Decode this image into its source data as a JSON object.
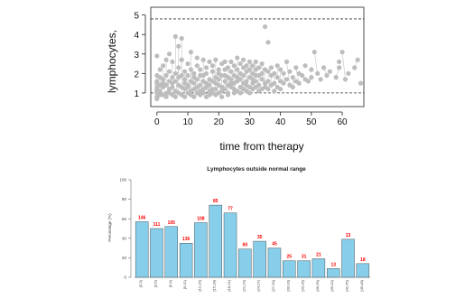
{
  "chart_data": [
    {
      "type": "scatter",
      "title": "",
      "xlabel": "time from therapy",
      "ylabel": "lymphocytes,",
      "xlim": [
        -2,
        67
      ],
      "ylim": [
        0.3,
        5.4
      ],
      "xticks": [
        0,
        10,
        20,
        30,
        40,
        50,
        60
      ],
      "yticks": [
        1,
        2,
        3,
        4,
        5
      ],
      "reference_lines": [
        4.8,
        1.0
      ],
      "points": [
        [
          0,
          1.0
        ],
        [
          0,
          1.2
        ],
        [
          0,
          1.5
        ],
        [
          0,
          0.8
        ],
        [
          0,
          1.9
        ],
        [
          0,
          2.9
        ],
        [
          0,
          1.3
        ],
        [
          0,
          0.7
        ],
        [
          0,
          1.6
        ],
        [
          0,
          1.1
        ],
        [
          1,
          1.4
        ],
        [
          1,
          2.2
        ],
        [
          1,
          0.9
        ],
        [
          1,
          1.8
        ],
        [
          1,
          1.1
        ],
        [
          2,
          1.3
        ],
        [
          2,
          1.7
        ],
        [
          2,
          0.9
        ],
        [
          2,
          2.4
        ],
        [
          2,
          1.5
        ],
        [
          3,
          1.0
        ],
        [
          3,
          2.7
        ],
        [
          3,
          1.4
        ],
        [
          3,
          1.9
        ],
        [
          3,
          0.8
        ],
        [
          4,
          1.6
        ],
        [
          4,
          2.1
        ],
        [
          4,
          1.2
        ],
        [
          4,
          1.0
        ],
        [
          4,
          3.0
        ],
        [
          5,
          1.5
        ],
        [
          5,
          2.6
        ],
        [
          5,
          1.8
        ],
        [
          5,
          0.9
        ],
        [
          5,
          1.3
        ],
        [
          6,
          1.1
        ],
        [
          6,
          3.9
        ],
        [
          6,
          2.0
        ],
        [
          6,
          1.6
        ],
        [
          6,
          0.8
        ],
        [
          7,
          2.3
        ],
        [
          7,
          1.4
        ],
        [
          7,
          1.0
        ],
        [
          7,
          3.4
        ],
        [
          7,
          1.8
        ],
        [
          8,
          1.3
        ],
        [
          8,
          2.7
        ],
        [
          8,
          1.9
        ],
        [
          8,
          0.9
        ],
        [
          8,
          3.8
        ],
        [
          9,
          1.5
        ],
        [
          9,
          2.1
        ],
        [
          9,
          1.2
        ],
        [
          9,
          0.8
        ],
        [
          9,
          1.7
        ],
        [
          10,
          1.4
        ],
        [
          10,
          2.5
        ],
        [
          10,
          1.0
        ],
        [
          10,
          1.9
        ],
        [
          10,
          1.3
        ],
        [
          11,
          1.1
        ],
        [
          11,
          2.2
        ],
        [
          11,
          1.6
        ],
        [
          11,
          0.9
        ],
        [
          11,
          3.1
        ],
        [
          12,
          1.5
        ],
        [
          12,
          2.0
        ],
        [
          12,
          1.2
        ],
        [
          12,
          1.8
        ],
        [
          12,
          0.8
        ],
        [
          13,
          1.3
        ],
        [
          13,
          2.4
        ],
        [
          13,
          1.7
        ],
        [
          13,
          1.0
        ],
        [
          13,
          2.8
        ],
        [
          14,
          1.4
        ],
        [
          14,
          1.9
        ],
        [
          14,
          1.1
        ],
        [
          14,
          2.2
        ],
        [
          14,
          0.9
        ],
        [
          15,
          1.6
        ],
        [
          15,
          2.7
        ],
        [
          15,
          1.2
        ],
        [
          15,
          1.9
        ],
        [
          15,
          1.0
        ],
        [
          16,
          1.5
        ],
        [
          16,
          2.3
        ],
        [
          16,
          1.3
        ],
        [
          16,
          0.8
        ],
        [
          16,
          2.0
        ],
        [
          17,
          1.7
        ],
        [
          17,
          1.1
        ],
        [
          17,
          2.6
        ],
        [
          17,
          1.4
        ],
        [
          17,
          0.9
        ],
        [
          18,
          1.2
        ],
        [
          18,
          2.1
        ],
        [
          18,
          1.6
        ],
        [
          18,
          1.0
        ],
        [
          18,
          2.4
        ],
        [
          19,
          1.5
        ],
        [
          19,
          1.8
        ],
        [
          19,
          0.9
        ],
        [
          19,
          2.7
        ],
        [
          19,
          1.2
        ],
        [
          20,
          1.4
        ],
        [
          20,
          2.0
        ],
        [
          20,
          1.0
        ],
        [
          20,
          1.7
        ],
        [
          20,
          2.2
        ],
        [
          21,
          1.3
        ],
        [
          21,
          1.9
        ],
        [
          21,
          0.8
        ],
        [
          21,
          2.5
        ],
        [
          21,
          1.1
        ],
        [
          22,
          1.6
        ],
        [
          22,
          2.2
        ],
        [
          22,
          1.2
        ],
        [
          22,
          1.9
        ],
        [
          22,
          2.6
        ],
        [
          23,
          1.4
        ],
        [
          23,
          1.8
        ],
        [
          23,
          1.0
        ],
        [
          23,
          2.3
        ],
        [
          23,
          0.9
        ],
        [
          24,
          1.5
        ],
        [
          24,
          2.1
        ],
        [
          24,
          1.3
        ],
        [
          24,
          2.6
        ],
        [
          24,
          1.7
        ],
        [
          25,
          1.2
        ],
        [
          25,
          1.9
        ],
        [
          25,
          2.4
        ],
        [
          25,
          1.0
        ],
        [
          25,
          1.5
        ],
        [
          26,
          1.6
        ],
        [
          26,
          2.2
        ],
        [
          26,
          1.1
        ],
        [
          26,
          2.8
        ],
        [
          26,
          1.8
        ],
        [
          27,
          1.3
        ],
        [
          27,
          2.0
        ],
        [
          27,
          1.7
        ],
        [
          27,
          2.5
        ],
        [
          27,
          1.0
        ],
        [
          28,
          1.5
        ],
        [
          28,
          2.3
        ],
        [
          28,
          1.2
        ],
        [
          28,
          1.9
        ],
        [
          28,
          2.7
        ],
        [
          29,
          1.4
        ],
        [
          29,
          2.1
        ],
        [
          29,
          1.6
        ],
        [
          29,
          2.4
        ],
        [
          29,
          1.1
        ],
        [
          30,
          1.3
        ],
        [
          30,
          1.8
        ],
        [
          30,
          2.2
        ],
        [
          30,
          1.0
        ],
        [
          30,
          2.6
        ],
        [
          31,
          1.5
        ],
        [
          31,
          2.0
        ],
        [
          31,
          1.2
        ],
        [
          31,
          2.4
        ],
        [
          31,
          1.7
        ],
        [
          32,
          1.6
        ],
        [
          32,
          2.2
        ],
        [
          32,
          1.3
        ],
        [
          32,
          1.9
        ],
        [
          32,
          2.6
        ],
        [
          33,
          1.4
        ],
        [
          33,
          1.9
        ],
        [
          33,
          1.1
        ],
        [
          33,
          2.3
        ],
        [
          34,
          1.7
        ],
        [
          34,
          2.5
        ],
        [
          34,
          1.2
        ],
        [
          34,
          2.0
        ],
        [
          35,
          1.5
        ],
        [
          35,
          4.4
        ],
        [
          35,
          2.2
        ],
        [
          35,
          1.3
        ],
        [
          36,
          1.6
        ],
        [
          36,
          2.1
        ],
        [
          36,
          1.2
        ],
        [
          36,
          3.6
        ],
        [
          37,
          1.4
        ],
        [
          37,
          1.9
        ],
        [
          37,
          2.3
        ],
        [
          38,
          1.5
        ],
        [
          38,
          2.0
        ],
        [
          38,
          1.1
        ],
        [
          39,
          1.8
        ],
        [
          39,
          2.4
        ],
        [
          39,
          1.3
        ],
        [
          40,
          1.6
        ],
        [
          40,
          2.2
        ],
        [
          40,
          1.2
        ],
        [
          41,
          1.5
        ],
        [
          41,
          2.0
        ],
        [
          42,
          1.7
        ],
        [
          42,
          2.6
        ],
        [
          43,
          1.4
        ],
        [
          43,
          2.1
        ],
        [
          44,
          1.8
        ],
        [
          44,
          1.3
        ],
        [
          45,
          1.6
        ],
        [
          45,
          2.3
        ],
        [
          46,
          1.5
        ],
        [
          46,
          2.0
        ],
        [
          47,
          1.9
        ],
        [
          48,
          1.7
        ],
        [
          48,
          2.4
        ],
        [
          49,
          1.6
        ],
        [
          50,
          1.8
        ],
        [
          50,
          2.2
        ],
        [
          51,
          3.1
        ],
        [
          52,
          2.0
        ],
        [
          53,
          1.7
        ],
        [
          54,
          2.3
        ],
        [
          55,
          1.9
        ],
        [
          56,
          2.1
        ],
        [
          58,
          1.8
        ],
        [
          59,
          2.3
        ],
        [
          59,
          2.6
        ],
        [
          60,
          3.1
        ],
        [
          61,
          1.7
        ],
        [
          62,
          2.0
        ],
        [
          64,
          2.3
        ],
        [
          65,
          2.7
        ],
        [
          66,
          1.5
        ]
      ]
    },
    {
      "type": "bar",
      "title": "Lymphocytes outside normal range",
      "ylabel": "Percentage (%)",
      "ylim": [
        0,
        100
      ],
      "yticks": [
        0,
        20,
        40,
        60,
        80,
        100
      ],
      "categories": [
        "[0,3)",
        "[3,6)",
        "[6,9)",
        "[9,12)",
        "[12,15)",
        "[15,18)",
        "[18,21)",
        "[21,24)",
        "[24,27)",
        "[27,30)",
        "[30,33)",
        "[33,36)",
        "[36,39)",
        "[39,42)",
        "[42,45)",
        "[45,48)"
      ],
      "values": [
        57,
        50,
        52,
        35,
        56,
        74,
        66,
        29,
        37,
        30,
        17,
        17,
        19,
        9,
        39,
        14
      ],
      "data_labels": [
        "146",
        "111",
        "105",
        "136",
        "108",
        "85",
        "77",
        "60",
        "35",
        "45",
        "25",
        "31",
        "21",
        "13",
        "13",
        "18"
      ],
      "bar_color": "#87ceeb",
      "label_color": "#ff0000"
    }
  ]
}
